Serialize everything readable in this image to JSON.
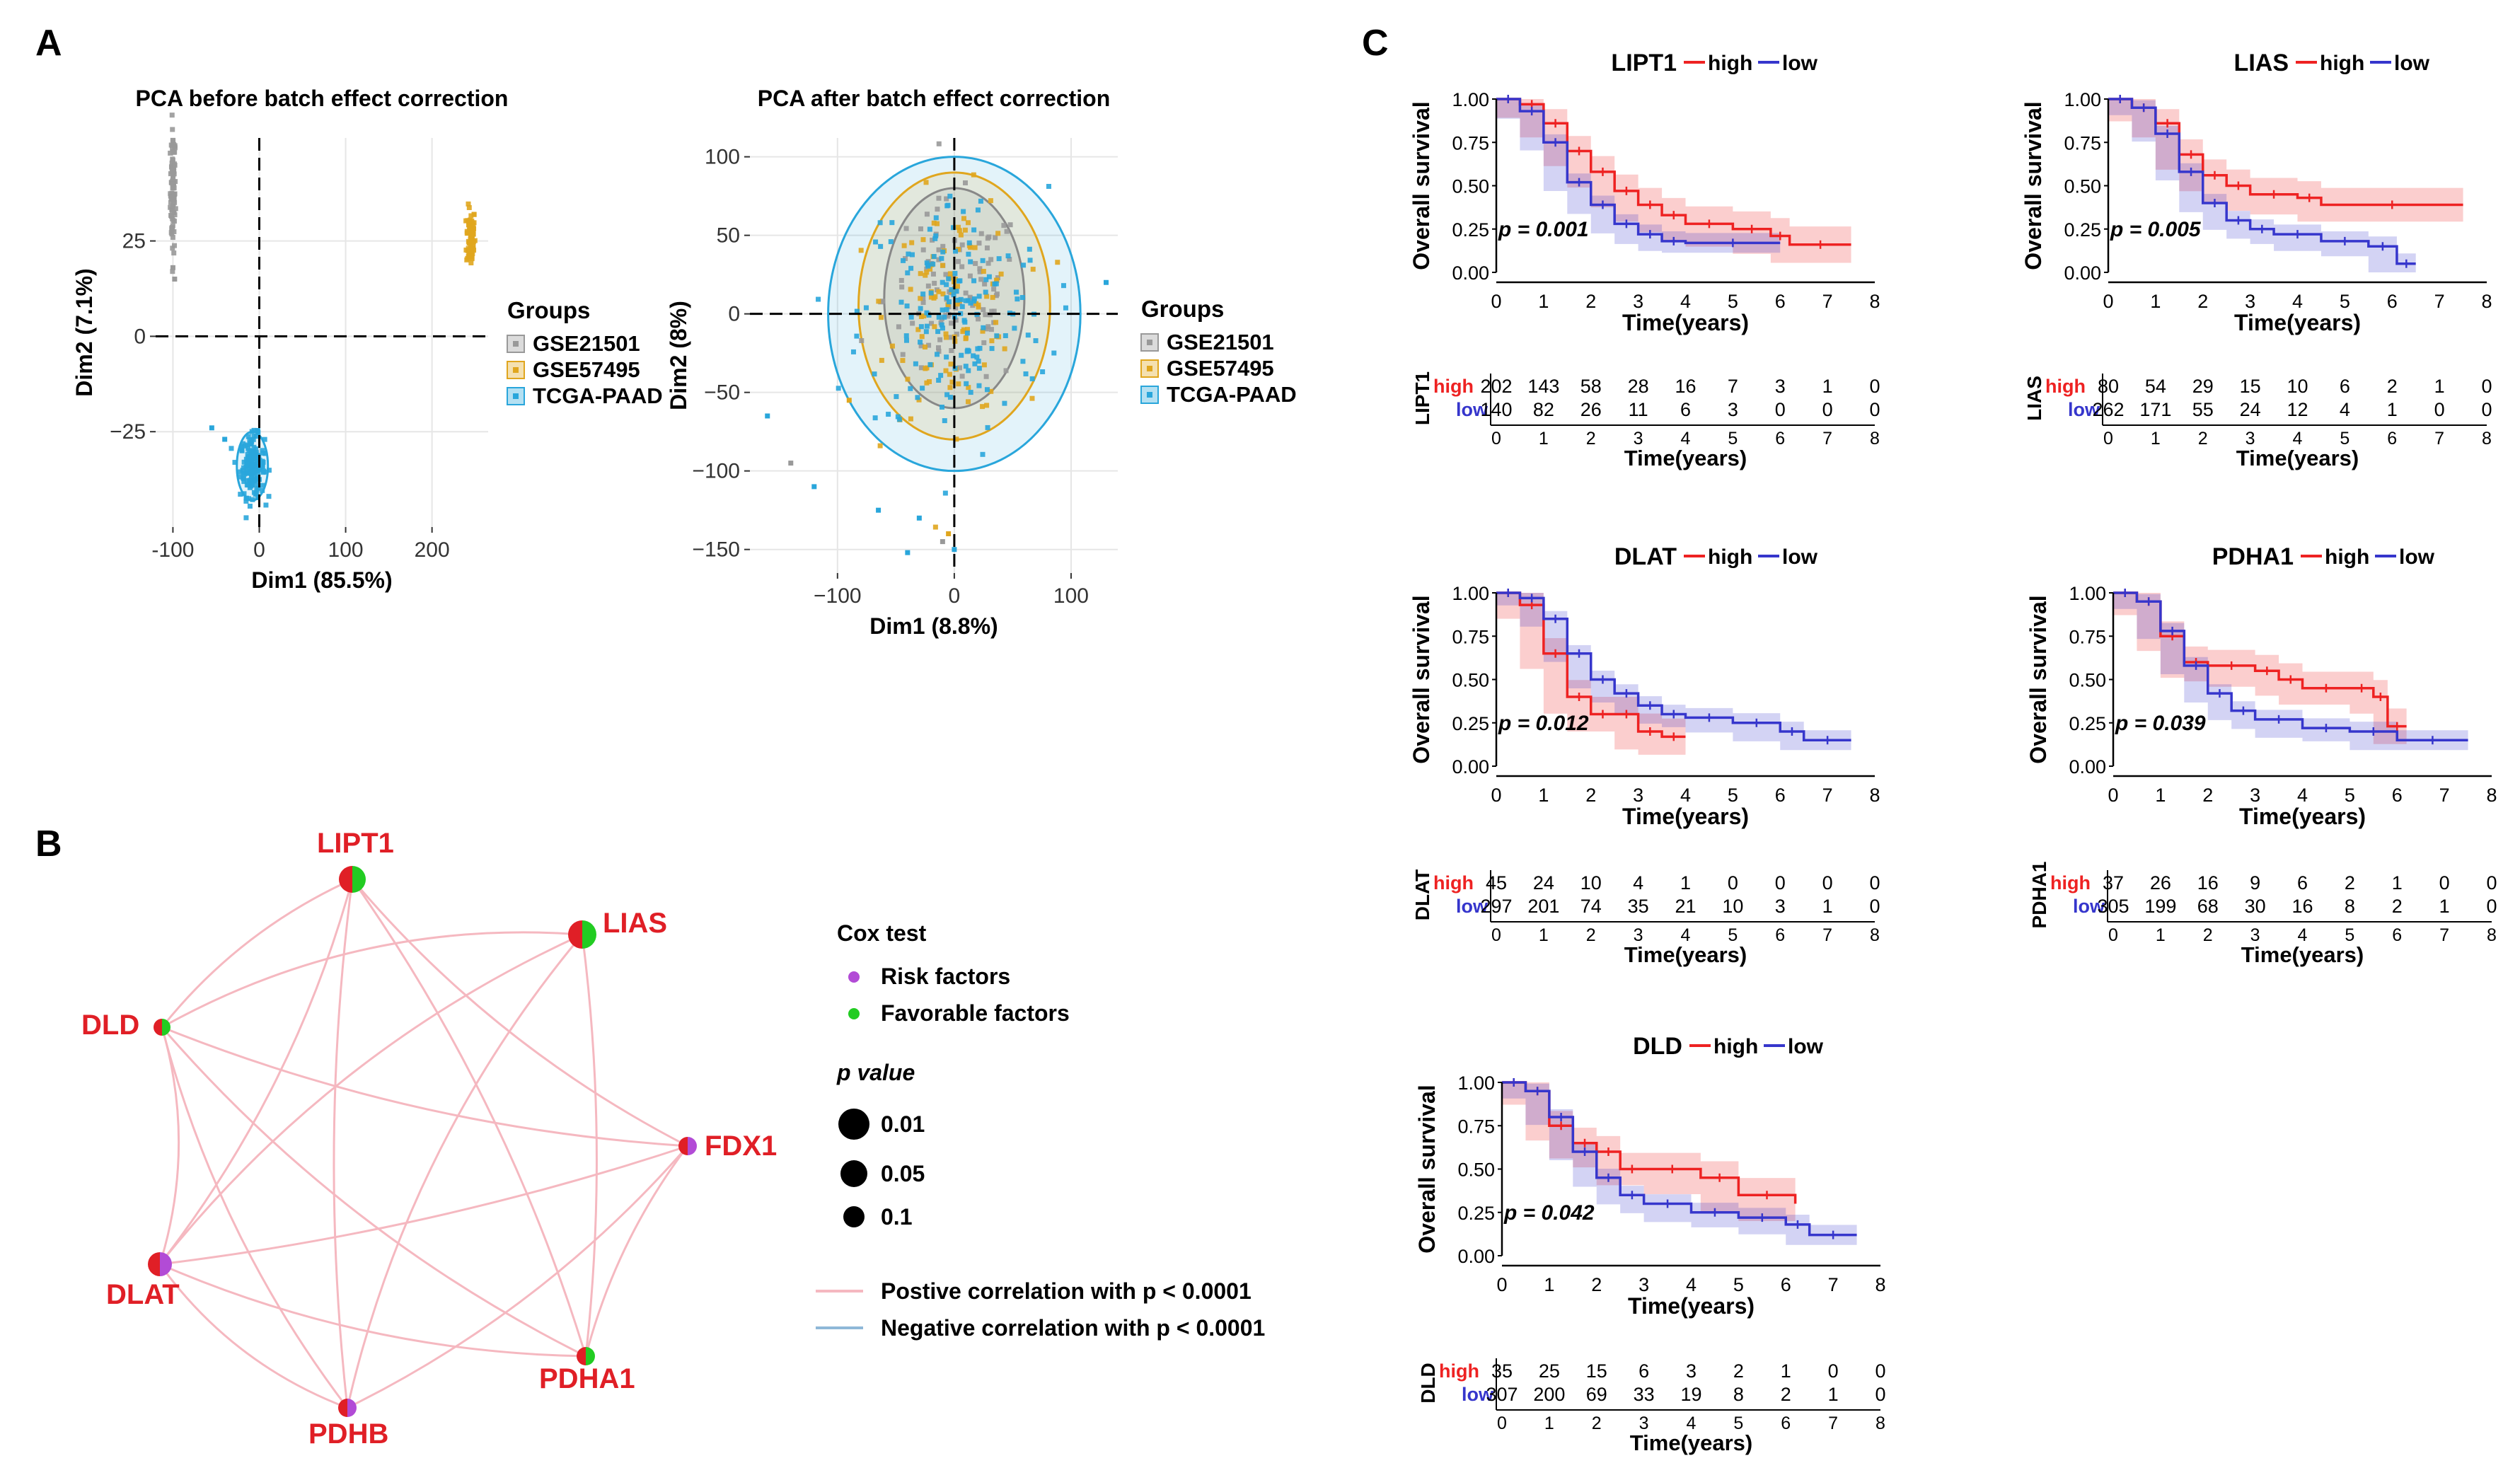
{
  "panel_labels": {
    "a": "A",
    "b": "B",
    "c": "C"
  },
  "colors": {
    "gse21501": "#999999",
    "gse57495": "#E0A61E",
    "tcga": "#29A6DB",
    "high": "#EE2222",
    "low": "#3636CC",
    "node_label": "#E01F26",
    "risk": "#B24BD6",
    "favorable": "#22CC22",
    "edge_pos": "#F5B8C0",
    "edge_neg": "#8FB8D8"
  },
  "pca_before": {
    "title": "PCA before batch effect correction",
    "xlabel": "Dim1 (85.5%)",
    "ylabel": "Dim2 (7.1%)",
    "xticks": [
      "-100",
      "0",
      "100",
      "200"
    ],
    "yticks": [
      "25",
      "0",
      "−25"
    ]
  },
  "pca_after": {
    "title": "PCA after batch effect correction",
    "xlabel": "Dim1 (8.8%)",
    "ylabel": "Dim2 (8%)",
    "xticks": [
      "−100",
      "0",
      "100"
    ],
    "yticks": [
      "100",
      "50",
      "0",
      "−50",
      "−100",
      "−150"
    ]
  },
  "groups_legend": {
    "title": "Groups",
    "items": [
      "GSE21501",
      "GSE57495",
      "TCGA-PAAD"
    ]
  },
  "network": {
    "nodes": [
      {
        "label": "LIPT1",
        "type": "mixed"
      },
      {
        "label": "LIAS",
        "type": "mixed"
      },
      {
        "label": "DLD",
        "type": "mixed"
      },
      {
        "label": "FDX1",
        "type": "mixed_risk"
      },
      {
        "label": "DLAT",
        "type": "mixed_risk"
      },
      {
        "label": "PDHA1",
        "type": "mixed"
      },
      {
        "label": "PDHB",
        "type": "mixed_risk"
      }
    ],
    "legend": {
      "cox_title": "Cox test",
      "risk": "Risk factors",
      "favorable": "Favorable factors",
      "p_title": "p value",
      "p_values": [
        "0.01",
        "0.05",
        "0.1"
      ],
      "pos": "Postive correlation with p < 0.0001",
      "neg": "Negative correlation with p < 0.0001"
    }
  },
  "chart_data": [
    {
      "type": "scatter",
      "title": "PCA before batch effect correction",
      "xlabel": "Dim1 (85.5%)",
      "ylabel": "Dim2 (7.1%)",
      "xlim": [
        -120,
        265
      ],
      "ylim": [
        -50,
        52
      ],
      "series": [
        {
          "name": "GSE21501",
          "center": [
            -100,
            38
          ],
          "spread": [
            1.5,
            8
          ]
        },
        {
          "name": "GSE57495",
          "center": [
            245,
            26
          ],
          "spread": [
            2.5,
            4
          ]
        },
        {
          "name": "TCGA-PAAD",
          "center": [
            -8,
            -34
          ],
          "spread": [
            7,
            4
          ]
        }
      ]
    },
    {
      "type": "scatter",
      "title": "PCA after batch effect correction",
      "xlabel": "Dim1 (8.8%)",
      "ylabel": "Dim2 (8%)",
      "xlim": [
        -175,
        140
      ],
      "ylim": [
        -165,
        112
      ],
      "series": [
        {
          "name": "GSE21501",
          "center": [
            0,
            10
          ],
          "spread": [
            30,
            30
          ]
        },
        {
          "name": "GSE57495",
          "center": [
            0,
            5
          ],
          "spread": [
            28,
            35
          ]
        },
        {
          "name": "TCGA-PAAD",
          "center": [
            0,
            0
          ],
          "spread": [
            40,
            40
          ]
        }
      ]
    },
    {
      "type": "line",
      "subtype": "kaplan-meier",
      "gene": "LIPT1",
      "title": "LIPT1",
      "legend": [
        "high",
        "low"
      ],
      "p": "p = 0.001",
      "ylabel": "Overall survival",
      "xlabel": "Time(years)",
      "yticks": [
        "1.00",
        "0.75",
        "0.50",
        "0.25",
        "0.00"
      ],
      "xticks": [
        "0",
        "1",
        "2",
        "3",
        "4",
        "5",
        "6",
        "7",
        "8"
      ],
      "high_curve": [
        [
          0,
          1
        ],
        [
          0.5,
          0.97
        ],
        [
          1,
          0.86
        ],
        [
          1.5,
          0.7
        ],
        [
          2,
          0.58
        ],
        [
          2.5,
          0.47
        ],
        [
          3,
          0.39
        ],
        [
          3.5,
          0.33
        ],
        [
          4,
          0.28
        ],
        [
          5,
          0.25
        ],
        [
          5.8,
          0.21
        ],
        [
          6.2,
          0.16
        ],
        [
          7.5,
          0.16
        ]
      ],
      "low_curve": [
        [
          0,
          1
        ],
        [
          0.5,
          0.93
        ],
        [
          1,
          0.75
        ],
        [
          1.5,
          0.52
        ],
        [
          2,
          0.39
        ],
        [
          2.5,
          0.28
        ],
        [
          3,
          0.22
        ],
        [
          3.5,
          0.18
        ],
        [
          4,
          0.17
        ],
        [
          6,
          0.17
        ]
      ],
      "risk_table": {
        "axis_label": "LIPT1",
        "high": [
          "202",
          "143",
          "58",
          "28",
          "16",
          "7",
          "3",
          "1",
          "0"
        ],
        "low": [
          "140",
          "82",
          "26",
          "11",
          "6",
          "3",
          "0",
          "0",
          "0"
        ]
      }
    },
    {
      "type": "line",
      "subtype": "kaplan-meier",
      "gene": "LIAS",
      "title": "LIAS",
      "legend": [
        "high",
        "low"
      ],
      "p": "p = 0.005",
      "ylabel": "Overall survival",
      "xlabel": "Time(years)",
      "yticks": [
        "1.00",
        "0.75",
        "0.50",
        "0.25",
        "0.00"
      ],
      "xticks": [
        "0",
        "1",
        "2",
        "3",
        "4",
        "5",
        "6",
        "7",
        "8"
      ],
      "high_curve": [
        [
          0,
          1
        ],
        [
          0.5,
          0.95
        ],
        [
          1,
          0.86
        ],
        [
          1.5,
          0.68
        ],
        [
          2,
          0.56
        ],
        [
          2.5,
          0.5
        ],
        [
          3,
          0.45
        ],
        [
          4,
          0.43
        ],
        [
          4.5,
          0.39
        ],
        [
          7.5,
          0.39
        ]
      ],
      "low_curve": [
        [
          0,
          1
        ],
        [
          0.5,
          0.95
        ],
        [
          1,
          0.8
        ],
        [
          1.5,
          0.58
        ],
        [
          2,
          0.4
        ],
        [
          2.5,
          0.3
        ],
        [
          3,
          0.25
        ],
        [
          3.5,
          0.22
        ],
        [
          4.5,
          0.18
        ],
        [
          5.5,
          0.15
        ],
        [
          6.1,
          0.05
        ],
        [
          6.5,
          0.05
        ]
      ],
      "risk_table": {
        "axis_label": "LIAS",
        "high": [
          "80",
          "54",
          "29",
          "15",
          "10",
          "6",
          "2",
          "1",
          "0"
        ],
        "low": [
          "262",
          "171",
          "55",
          "24",
          "12",
          "4",
          "1",
          "0",
          "0"
        ]
      }
    },
    {
      "type": "line",
      "subtype": "kaplan-meier",
      "gene": "DLAT",
      "title": "DLAT",
      "legend": [
        "high",
        "low"
      ],
      "p": "p = 0.012",
      "ylabel": "Overall survival",
      "xlabel": "Time(years)",
      "yticks": [
        "1.00",
        "0.75",
        "0.50",
        "0.25",
        "0.00"
      ],
      "xticks": [
        "0",
        "1",
        "2",
        "3",
        "4",
        "5",
        "6",
        "7",
        "8"
      ],
      "high_curve": [
        [
          0,
          1
        ],
        [
          0.5,
          0.93
        ],
        [
          1,
          0.65
        ],
        [
          1.5,
          0.4
        ],
        [
          2,
          0.3
        ],
        [
          2.5,
          0.3
        ],
        [
          3,
          0.2
        ],
        [
          3.5,
          0.17
        ],
        [
          4,
          0.17
        ]
      ],
      "low_curve": [
        [
          0,
          1
        ],
        [
          0.5,
          0.97
        ],
        [
          1,
          0.85
        ],
        [
          1.5,
          0.65
        ],
        [
          2,
          0.5
        ],
        [
          2.5,
          0.42
        ],
        [
          3,
          0.35
        ],
        [
          3.5,
          0.3
        ],
        [
          4,
          0.28
        ],
        [
          5,
          0.25
        ],
        [
          6,
          0.2
        ],
        [
          6.5,
          0.15
        ],
        [
          7.5,
          0.15
        ]
      ],
      "risk_table": {
        "axis_label": "DLAT",
        "high": [
          "45",
          "24",
          "10",
          "4",
          "1",
          "0",
          "0",
          "0",
          "0"
        ],
        "low": [
          "297",
          "201",
          "74",
          "35",
          "21",
          "10",
          "3",
          "1",
          "0"
        ]
      }
    },
    {
      "type": "line",
      "subtype": "kaplan-meier",
      "gene": "PDHA1",
      "title": "PDHA1",
      "legend": [
        "high",
        "low"
      ],
      "p": "p = 0.039",
      "ylabel": "Overall survival",
      "xlabel": "Time(years)",
      "yticks": [
        "1.00",
        "0.75",
        "0.50",
        "0.25",
        "0.00"
      ],
      "xticks": [
        "0",
        "1",
        "2",
        "3",
        "4",
        "5",
        "6",
        "7",
        "8"
      ],
      "high_curve": [
        [
          0,
          1
        ],
        [
          0.5,
          0.95
        ],
        [
          1,
          0.75
        ],
        [
          1.5,
          0.6
        ],
        [
          2,
          0.58
        ],
        [
          3,
          0.55
        ],
        [
          3.5,
          0.5
        ],
        [
          4,
          0.45
        ],
        [
          5,
          0.45
        ],
        [
          5.5,
          0.4
        ],
        [
          5.8,
          0.23
        ],
        [
          6.2,
          0.23
        ]
      ],
      "low_curve": [
        [
          0,
          1
        ],
        [
          0.5,
          0.95
        ],
        [
          1,
          0.78
        ],
        [
          1.5,
          0.58
        ],
        [
          2,
          0.42
        ],
        [
          2.5,
          0.32
        ],
        [
          3,
          0.27
        ],
        [
          4,
          0.22
        ],
        [
          5,
          0.2
        ],
        [
          6,
          0.15
        ],
        [
          7.5,
          0.15
        ]
      ],
      "risk_table": {
        "axis_label": "PDHA1",
        "high": [
          "37",
          "26",
          "16",
          "9",
          "6",
          "2",
          "1",
          "0",
          "0"
        ],
        "low": [
          "305",
          "199",
          "68",
          "30",
          "16",
          "8",
          "2",
          "1",
          "0"
        ]
      }
    },
    {
      "type": "line",
      "subtype": "kaplan-meier",
      "gene": "DLD",
      "title": "DLD",
      "legend": [
        "high",
        "low"
      ],
      "p": "p = 0.042",
      "ylabel": "Overall survival",
      "xlabel": "Time(years)",
      "yticks": [
        "1.00",
        "0.75",
        "0.50",
        "0.25",
        "0.00"
      ],
      "xticks": [
        "0",
        "1",
        "2",
        "3",
        "4",
        "5",
        "6",
        "7",
        "8"
      ],
      "high_curve": [
        [
          0,
          1
        ],
        [
          0.5,
          0.95
        ],
        [
          1,
          0.75
        ],
        [
          1.5,
          0.65
        ],
        [
          2,
          0.6
        ],
        [
          2.5,
          0.5
        ],
        [
          3,
          0.5
        ],
        [
          4.2,
          0.45
        ],
        [
          5,
          0.35
        ],
        [
          6.2,
          0.3
        ]
      ],
      "low_curve": [
        [
          0,
          1
        ],
        [
          0.5,
          0.95
        ],
        [
          1,
          0.8
        ],
        [
          1.5,
          0.6
        ],
        [
          2,
          0.45
        ],
        [
          2.5,
          0.35
        ],
        [
          3,
          0.3
        ],
        [
          4,
          0.25
        ],
        [
          5,
          0.22
        ],
        [
          6,
          0.18
        ],
        [
          6.5,
          0.12
        ],
        [
          7.5,
          0.12
        ]
      ],
      "risk_table": {
        "axis_label": "DLD",
        "high": [
          "35",
          "25",
          "15",
          "6",
          "3",
          "2",
          "1",
          "0",
          "0"
        ],
        "low": [
          "307",
          "200",
          "69",
          "33",
          "19",
          "8",
          "2",
          "1",
          "0"
        ]
      }
    }
  ]
}
